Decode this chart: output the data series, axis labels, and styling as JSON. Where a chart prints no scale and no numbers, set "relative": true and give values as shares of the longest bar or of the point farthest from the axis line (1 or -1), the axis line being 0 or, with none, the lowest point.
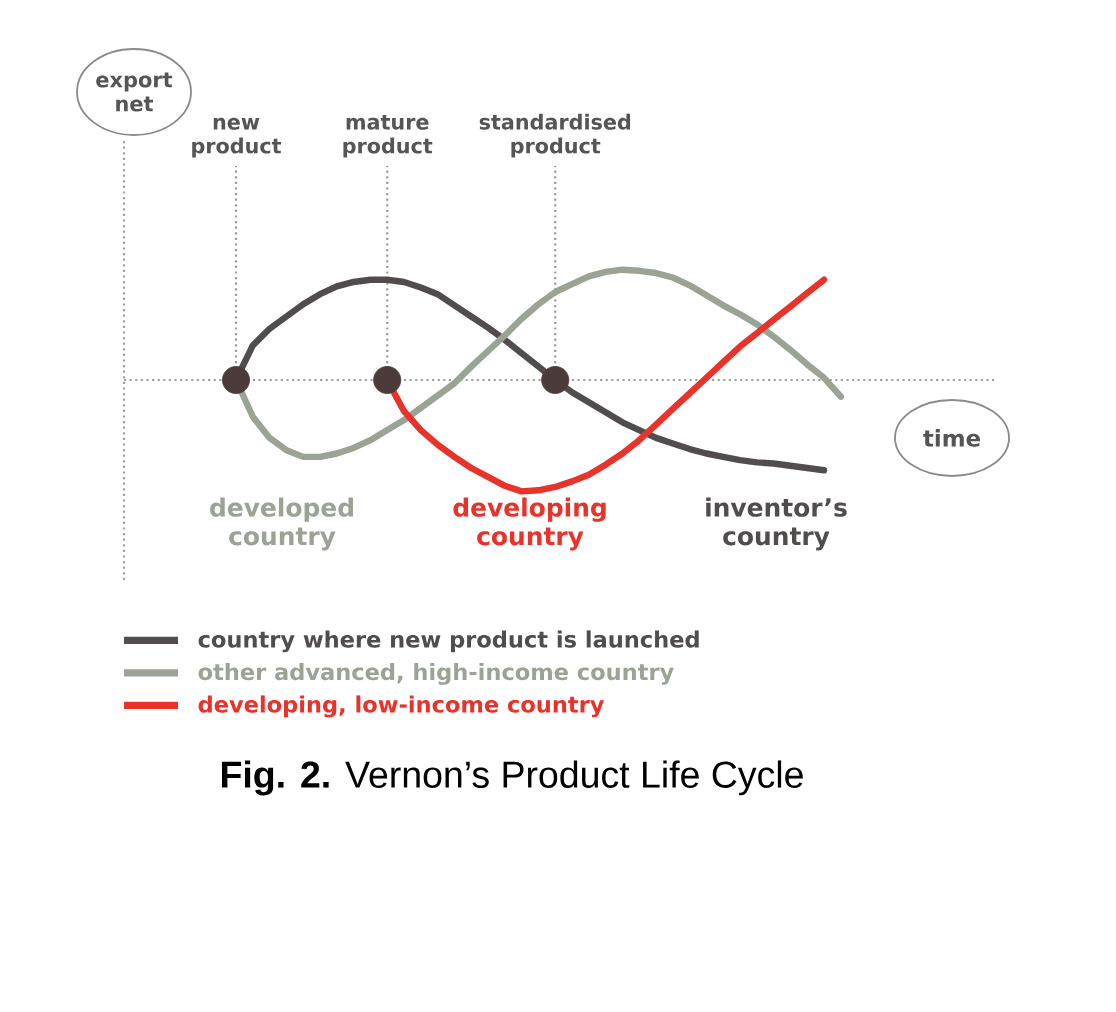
{
  "chart_data": {
    "type": "line",
    "title": "**Fig. 2.** Vernon’s Product Life Cycle",
    "xlabel": "time",
    "ylabel": "export net",
    "relative": true,
    "legend": "bottom",
    "marker": "none",
    "line_style": "solid",
    "grid": "x",
    "tick_labels": "x",
    "categories": [
      "new product",
      null,
      null,
      null,
      null,
      null,
      null,
      null,
      null,
      "mature product",
      null,
      null,
      null,
      null,
      null,
      null,
      null,
      null,
      null,
      "standardised product",
      null,
      null,
      null,
      null,
      null,
      null,
      null,
      null,
      null,
      null,
      null,
      null,
      null,
      null,
      null,
      null,
      null
    ],
    "series": [
      {
        "name": "country where new product is launched",
        "color": "#524d4d",
        "values": [
          0,
          0.31,
          0.46,
          0.57,
          0.68,
          0.77,
          0.84,
          0.88,
          0.9,
          0.9,
          0.88,
          0.83,
          0.77,
          0.67,
          0.57,
          0.47,
          0.36,
          0.24,
          0.12,
          0,
          -0.11,
          -0.2,
          -0.29,
          -0.38,
          -0.45,
          -0.52,
          -0.57,
          -0.62,
          -0.66,
          -0.69,
          -0.72,
          -0.74,
          -0.75,
          -0.77,
          -0.79,
          -0.81,
          null
        ]
      },
      {
        "name": "other advanced, high-income country",
        "color": "#9aa394",
        "values": [
          0,
          -0.33,
          -0.52,
          -0.63,
          -0.69,
          -0.69,
          -0.66,
          -0.61,
          -0.54,
          -0.45,
          -0.36,
          -0.25,
          -0.14,
          -0.03,
          0.12,
          0.26,
          0.4,
          0.55,
          0.68,
          0.79,
          0.86,
          0.93,
          0.97,
          0.99,
          0.98,
          0.96,
          0.92,
          0.85,
          0.76,
          0.67,
          0.59,
          0.5,
          0.39,
          0.27,
          0.14,
          0.02,
          -0.15
        ]
      },
      {
        "name": "developing, low-income country",
        "color": "#e8322a",
        "values": [
          null,
          null,
          null,
          null,
          null,
          null,
          null,
          null,
          null,
          0,
          -0.28,
          -0.45,
          -0.58,
          -0.69,
          -0.79,
          -0.87,
          -0.95,
          -1,
          -0.99,
          -0.96,
          -0.91,
          -0.85,
          -0.76,
          -0.66,
          -0.54,
          -0.4,
          -0.26,
          -0.12,
          0.02,
          0.16,
          0.3,
          0.42,
          0.54,
          0.66,
          0.78,
          0.9,
          null
        ]
      },
      {
        "type": "scatter",
        "color": "#4b3b3b",
        "marker": "circle",
        "values": [
          0,
          null,
          null,
          null,
          null,
          null,
          null,
          null,
          null,
          0,
          null,
          null,
          null,
          null,
          null,
          null,
          null,
          null,
          null,
          0,
          null,
          null,
          null,
          null,
          null,
          null,
          null,
          null,
          null,
          null,
          null,
          null,
          null,
          null,
          null,
          null,
          null
        ]
      }
    ],
    "ref_lines": [
      {
        "axis": "y",
        "value": 0,
        "color": "#a0a39c",
        "line_style": "dotted"
      }
    ],
    "annotations": [
      "developed country",
      "developing country",
      "inventor’s country"
    ]
  }
}
